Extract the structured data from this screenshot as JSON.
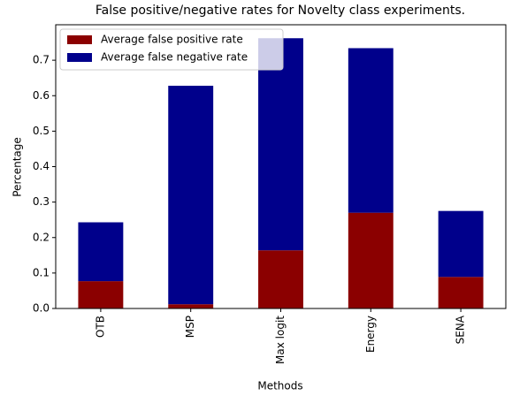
{
  "chart_data": {
    "type": "stacked_bar",
    "title": "False positive/negative rates for Novelty class experiments.",
    "x_label": "Methods",
    "y_label": "Percentage",
    "categories": [
      "OTB",
      "MSP",
      "Max logit",
      "Energy",
      "SENA"
    ],
    "series": [
      {
        "name": "Average false positive rate",
        "color": "#8b0000",
        "values": [
          0.077,
          0.012,
          0.164,
          0.27,
          0.089
        ]
      },
      {
        "name": "Average false negative rate",
        "color": "#00008b",
        "values": [
          0.166,
          0.616,
          0.598,
          0.464,
          0.186
        ]
      }
    ],
    "ylim": [
      0,
      0.8
    ],
    "yticks": [
      {
        "value": 0,
        "label": "0.0"
      },
      0.1,
      0.2,
      0.3,
      0.4,
      0.5,
      0.6,
      0.7
    ],
    "legend": "upper left"
  }
}
